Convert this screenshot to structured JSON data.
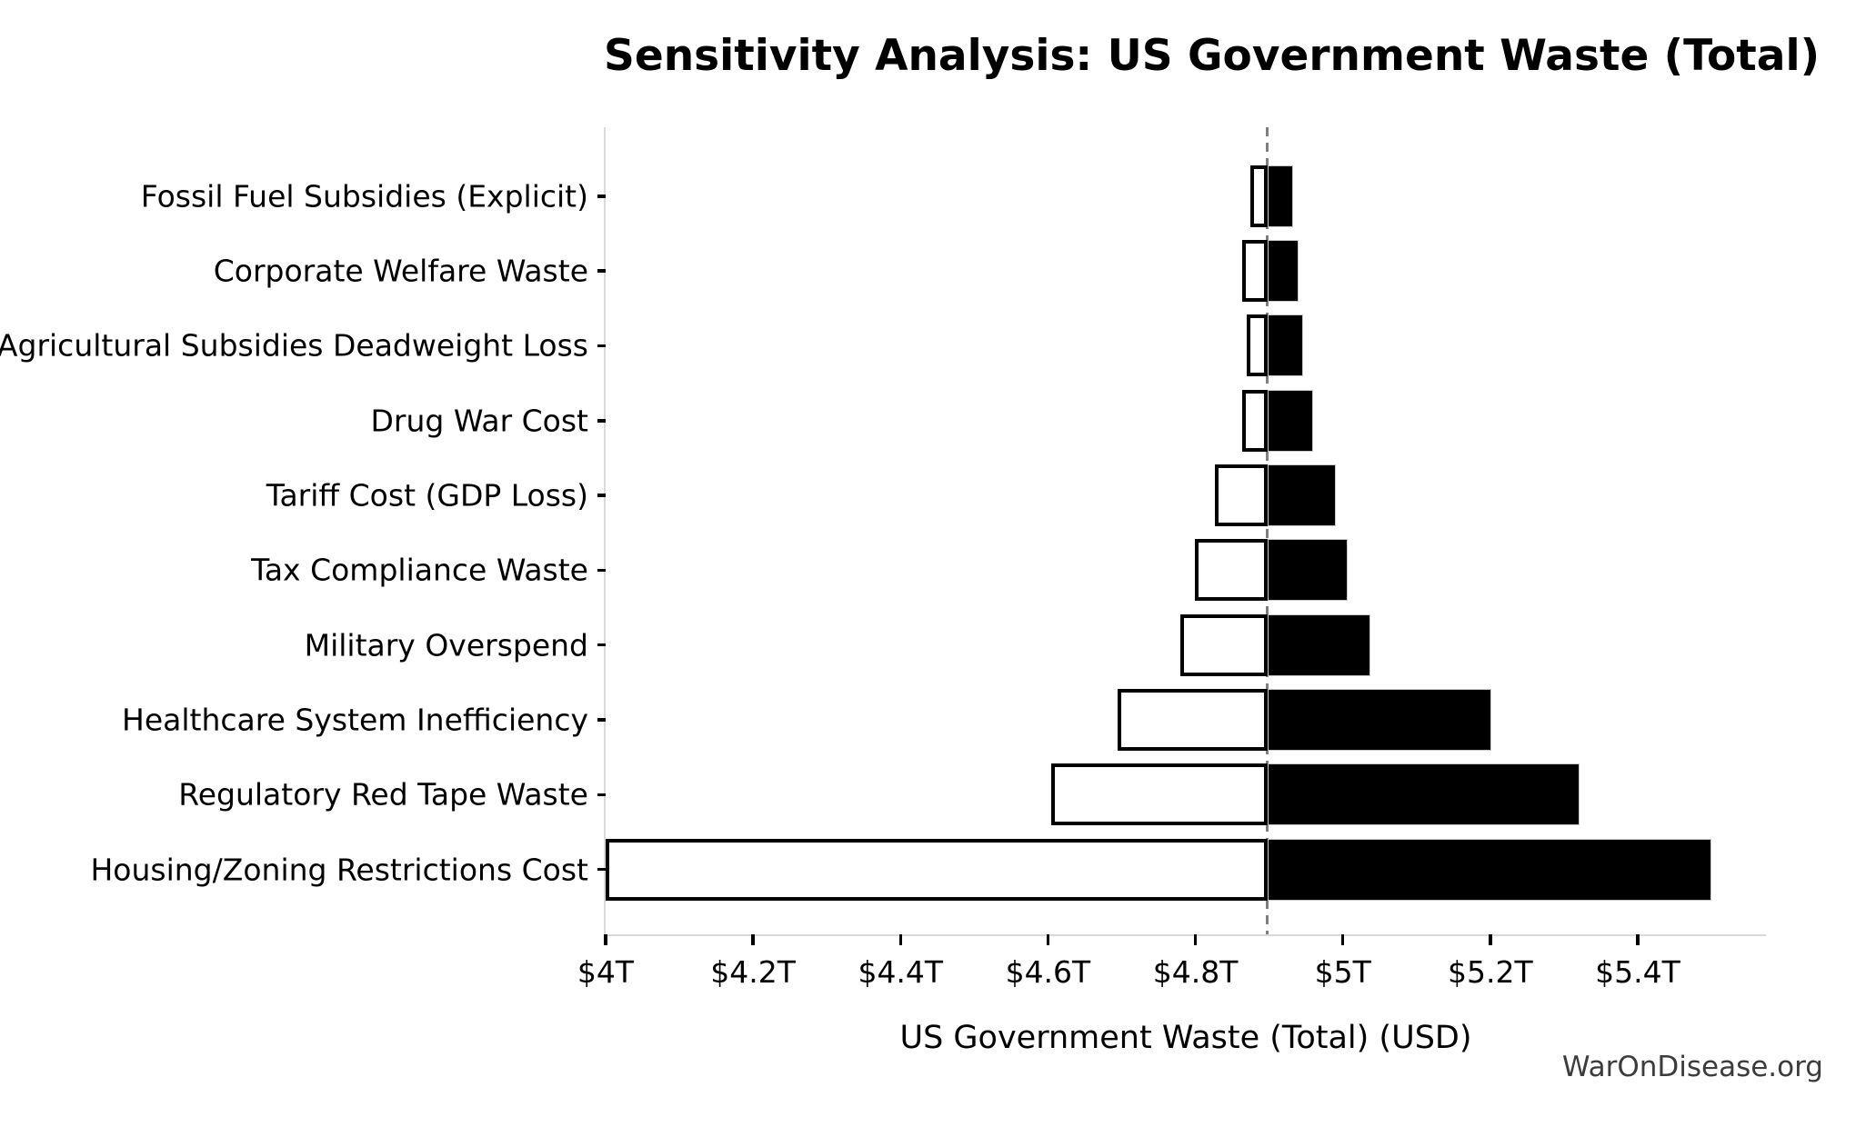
{
  "watermark": {
    "text": "WarOnDisease.org"
  },
  "chart_data": {
    "type": "bar",
    "orientation": "horizontal-tornado",
    "title": "Sensitivity Analysis: US Government Waste (Total)",
    "xlabel": "US Government Waste (Total) (USD)",
    "baseline": 4.898,
    "xlim": [
      4.0,
      5.574
    ],
    "grid": false,
    "legend": null,
    "x_ticks": [
      {
        "value": 4.0,
        "label": "$4T"
      },
      {
        "value": 4.2,
        "label": "$4.2T"
      },
      {
        "value": 4.4,
        "label": "$4.4T"
      },
      {
        "value": 4.6,
        "label": "$4.6T"
      },
      {
        "value": 4.8,
        "label": "$4.8T"
      },
      {
        "value": 5.0,
        "label": "$5T"
      },
      {
        "value": 5.2,
        "label": "$5.2T"
      },
      {
        "value": 5.4,
        "label": "$5.4T"
      }
    ],
    "bars": [
      {
        "label": "Fossil Fuel Subsidies (Explicit)",
        "low": 4.875,
        "high": 4.932
      },
      {
        "label": "Corporate Welfare Waste",
        "low": 4.864,
        "high": 4.94
      },
      {
        "label": "Agricultural Subsidies Deadweight Loss",
        "low": 4.87,
        "high": 4.946
      },
      {
        "label": "Drug War Cost",
        "low": 4.864,
        "high": 4.96
      },
      {
        "label": "Tariff Cost (GDP Loss)",
        "low": 4.826,
        "high": 4.991
      },
      {
        "label": "Tax Compliance Waste",
        "low": 4.799,
        "high": 5.006
      },
      {
        "label": "Military Overspend",
        "low": 4.78,
        "high": 5.037
      },
      {
        "label": "Healthcare System Inefficiency",
        "low": 4.695,
        "high": 5.201
      },
      {
        "label": "Regulatory Red Tape Waste",
        "low": 4.605,
        "high": 5.321
      },
      {
        "label": "Housing/Zoning Restrictions Cost",
        "low": 4.0,
        "high": 5.5
      }
    ],
    "colors": {
      "low_fill": "#ffffff",
      "high_fill": "#000000",
      "bar_edge": "#000000",
      "baseline_line": "#7f7f7f",
      "spine": "#d9d9d9",
      "text": "#000000",
      "watermark": "#3c3c3c"
    }
  }
}
